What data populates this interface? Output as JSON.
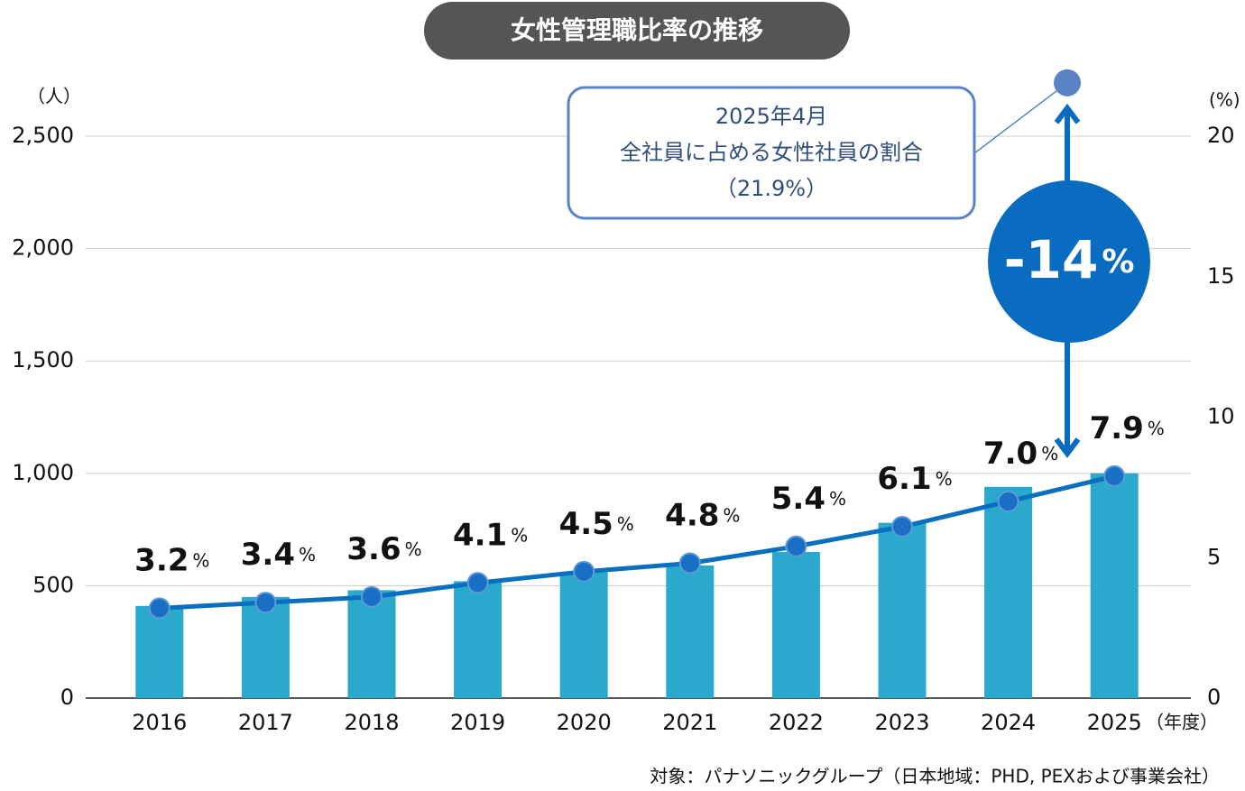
{
  "chart_data": {
    "type": "bar",
    "title": "女性管理職比率の推移",
    "y_unit": "（人）",
    "y2_unit": "(%)",
    "x_unit": "（年度）",
    "categories": [
      "2016",
      "2017",
      "2018",
      "2019",
      "2020",
      "2021",
      "2022",
      "2023",
      "2024",
      "2025"
    ],
    "series": [
      {
        "type": "bar",
        "color": "#2aa9cc",
        "values": [
          410,
          450,
          480,
          520,
          560,
          590,
          650,
          780,
          940,
          1000
        ]
      },
      {
        "type": "line",
        "axis": "y2",
        "color": "#0b6fc0",
        "values": [
          3.2,
          3.4,
          3.6,
          4.1,
          4.5,
          4.8,
          5.4,
          6.1,
          7.0,
          7.9
        ],
        "value_labels": [
          "3.2%",
          "3.4%",
          "3.6%",
          "4.1%",
          "4.5%",
          "4.8%",
          "5.4%",
          "6.1%",
          "7.0%",
          "7.9%"
        ]
      }
    ],
    "ylim": [
      0,
      2500
    ],
    "yticks": [
      0,
      500,
      {
        "value": 1000,
        "label": "1,000"
      },
      {
        "value": 1500,
        "label": "1,500"
      },
      {
        "value": 2000,
        "label": "2,000"
      },
      {
        "value": 2500,
        "label": "2,500"
      }
    ],
    "y2lim": [
      0,
      20
    ],
    "y2ticks": [
      0,
      5,
      10,
      15,
      20
    ],
    "grid": true,
    "annotation": {
      "lines": [
        "2025年4月",
        "全社員に占める女性社員の割合",
        "（21.9%）"
      ],
      "value": 21.9
    },
    "difference_label": "-14%",
    "note": "対象：パナソニックグループ（日本地域：PHD, PEXおよび事業会社）"
  }
}
